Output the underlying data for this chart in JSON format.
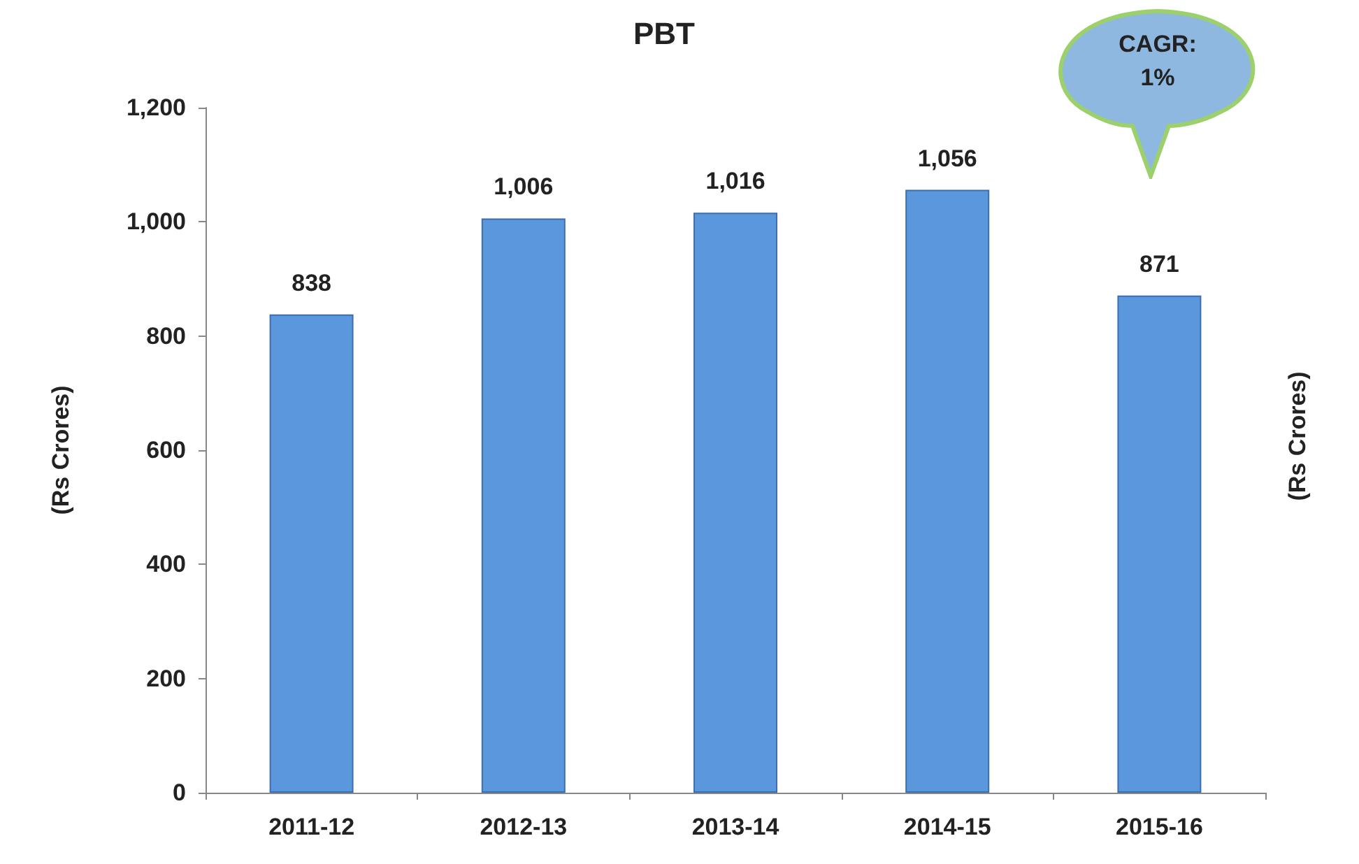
{
  "chart_data": {
    "type": "bar",
    "title": "PBT",
    "ylabel": "(Rs Crores)",
    "categories": [
      "2011-12",
      "2012-13",
      "2013-14",
      "2014-15",
      "2015-16"
    ],
    "values": [
      838,
      1006,
      1016,
      1056,
      871
    ],
    "color": "#5b97dc",
    "value_labels": [
      "838",
      "1,006",
      "1,016",
      "1,056",
      "871"
    ],
    "ylim": [
      0,
      1200
    ],
    "yticks": [
      0,
      200,
      400,
      600,
      800,
      {
        "value": 1000,
        "label": "1,000"
      },
      {
        "value": 1200,
        "label": "1,200"
      }
    ],
    "grid": false,
    "annotations": [
      "CAGR:\n1%",
      "(Rs Crores)"
    ]
  }
}
